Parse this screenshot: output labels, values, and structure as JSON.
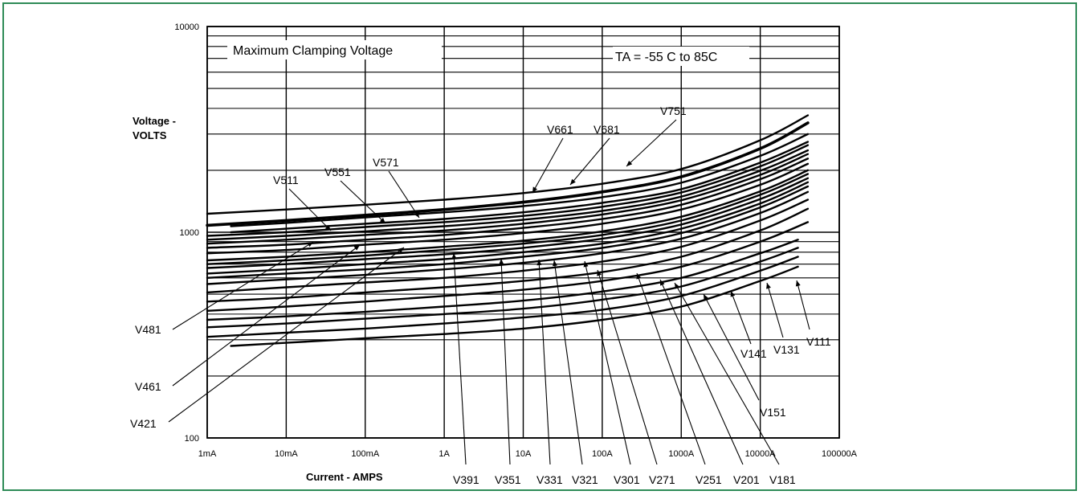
{
  "chart_data": {
    "type": "line",
    "title": "Maximum Clamping Voltage",
    "annotation": "TA = -55 C to 85C",
    "ylabel_line1": "Voltage -",
    "ylabel_line2": "VOLTS",
    "xlabel": "Current  - AMPS",
    "x_scale": "log",
    "y_scale": "log",
    "xlim": [
      0.001,
      100000
    ],
    "ylim": [
      100,
      10000
    ],
    "grid": true,
    "x_ticks": [
      "1mA",
      "10mA",
      "100mA",
      "1A",
      "10A",
      "100A",
      "1000A",
      "10000A",
      "100000A"
    ],
    "y_ticks": [
      "10000",
      "1000",
      "100"
    ],
    "series": [
      {
        "name": "V751",
        "x": [
          0.001,
          0.01,
          0.1,
          1,
          10,
          100,
          1000,
          10000,
          40000
        ],
        "y": [
          1230,
          1290,
          1360,
          1440,
          1550,
          1720,
          2030,
          2800,
          3700
        ]
      },
      {
        "name": "V681",
        "x": [
          0.001,
          0.01,
          0.1,
          1,
          10,
          100,
          1000,
          10000,
          40000
        ],
        "y": [
          1080,
          1140,
          1210,
          1290,
          1400,
          1570,
          1860,
          2550,
          3400
        ]
      },
      {
        "name": "V661",
        "x": [
          0.002,
          0.01,
          0.1,
          1,
          10,
          100,
          1000,
          10000,
          40000
        ],
        "y": [
          1070,
          1110,
          1180,
          1250,
          1340,
          1480,
          1740,
          2350,
          3000
        ]
      },
      {
        "name": "V571",
        "x": [
          0.002,
          0.01,
          0.1,
          1,
          10,
          100,
          1000,
          10000,
          40000
        ],
        "y": [
          1000,
          1040,
          1100,
          1160,
          1250,
          1390,
          1620,
          2180,
          2750
        ]
      },
      {
        "name": "V551",
        "x": [
          0.001,
          0.01,
          0.1,
          1,
          10,
          100,
          1000,
          10000,
          40000
        ],
        "y": [
          960,
          1000,
          1060,
          1120,
          1200,
          1330,
          1560,
          2090,
          2650
        ]
      },
      {
        "name": "V511",
        "x": [
          0.001,
          0.01,
          0.1,
          1,
          10,
          100,
          1000,
          10000,
          40000
        ],
        "y": [
          920,
          960,
          1010,
          1070,
          1150,
          1270,
          1490,
          1990,
          2500
        ]
      },
      {
        "name": "V481",
        "x": [
          0.001,
          0.01,
          0.1,
          1,
          10,
          100,
          1000,
          10000,
          40000
        ],
        "y": [
          880,
          920,
          970,
          1020,
          1100,
          1220,
          1430,
          1900,
          2400
        ]
      },
      {
        "name": "V461",
        "x": [
          0.001,
          0.01,
          0.1,
          1,
          10,
          100,
          1000,
          10000,
          40000
        ],
        "y": [
          840,
          870,
          920,
          970,
          1050,
          1160,
          1360,
          1810,
          2280
        ]
      },
      {
        "name": "V421",
        "x": [
          0.001,
          0.01,
          0.1,
          1,
          10,
          100,
          1000,
          10000,
          40000
        ],
        "y": [
          790,
          820,
          870,
          920,
          990,
          1100,
          1290,
          1700,
          2150
        ]
      },
      {
        "name": "V391",
        "x": [
          0.001,
          0.01,
          0.1,
          1,
          10,
          100,
          1000,
          10000,
          40000
        ],
        "y": [
          730,
          760,
          800,
          850,
          910,
          1010,
          1190,
          1580,
          2000
        ]
      },
      {
        "name": "V351",
        "x": [
          0.001,
          0.01,
          0.1,
          1,
          10,
          100,
          1000,
          10000,
          40000
        ],
        "y": [
          700,
          730,
          770,
          820,
          880,
          970,
          1140,
          1520,
          1920
        ]
      },
      {
        "name": "V331",
        "x": [
          0.001,
          0.01,
          0.1,
          1,
          10,
          100,
          1000,
          10000,
          40000
        ],
        "y": [
          670,
          700,
          740,
          780,
          840,
          930,
          1090,
          1450,
          1830
        ]
      },
      {
        "name": "V321",
        "x": [
          0.001,
          0.01,
          0.1,
          1,
          10,
          100,
          1000,
          10000,
          40000
        ],
        "y": [
          630,
          660,
          700,
          740,
          800,
          880,
          1040,
          1380,
          1750
        ]
      },
      {
        "name": "V301",
        "x": [
          0.001,
          0.01,
          0.1,
          1,
          10,
          100,
          1000,
          10000,
          40000
        ],
        "y": [
          600,
          630,
          660,
          700,
          760,
          840,
          990,
          1320,
          1670
        ]
      },
      {
        "name": "V271",
        "x": [
          0.001,
          0.01,
          0.1,
          1,
          10,
          100,
          1000,
          10000,
          40000
        ],
        "y": [
          560,
          590,
          620,
          660,
          710,
          790,
          930,
          1240,
          1570
        ]
      },
      {
        "name": "V251",
        "x": [
          0.001,
          0.01,
          0.1,
          1,
          10,
          100,
          1000,
          10000,
          40000
        ],
        "y": [
          510,
          540,
          570,
          600,
          650,
          720,
          850,
          1140,
          1440
        ]
      },
      {
        "name": "V201",
        "x": [
          0.001,
          0.01,
          0.1,
          1,
          10,
          100,
          1000,
          10000,
          40000
        ],
        "y": [
          460,
          480,
          510,
          540,
          580,
          640,
          760,
          1020,
          1300
        ]
      },
      {
        "name": "V181",
        "x": [
          0.001,
          0.01,
          0.1,
          1,
          10,
          100,
          1000,
          10000,
          40000
        ],
        "y": [
          415,
          435,
          460,
          490,
          525,
          580,
          680,
          900,
          1120
        ]
      },
      {
        "name": "V151",
        "x": [
          0.001,
          0.01,
          0.1,
          1,
          10,
          100,
          1000,
          10000,
          30000
        ],
        "y": [
          375,
          390,
          410,
          435,
          465,
          515,
          600,
          790,
          920
        ]
      },
      {
        "name": "V141",
        "x": [
          0.001,
          0.01,
          0.1,
          1,
          10,
          100,
          1000,
          10000,
          30000
        ],
        "y": [
          345,
          360,
          380,
          400,
          425,
          470,
          545,
          720,
          840
        ]
      },
      {
        "name": "V131",
        "x": [
          0.001,
          0.01,
          0.1,
          1,
          10,
          100,
          1000,
          10000,
          30000
        ],
        "y": [
          310,
          325,
          340,
          360,
          385,
          420,
          490,
          650,
          760
        ]
      },
      {
        "name": "V111",
        "x": [
          0.002,
          0.01,
          0.1,
          1,
          10,
          100,
          1000,
          10000,
          30000
        ],
        "y": [
          280,
          290,
          305,
          320,
          340,
          375,
          435,
          580,
          680
        ]
      }
    ]
  }
}
